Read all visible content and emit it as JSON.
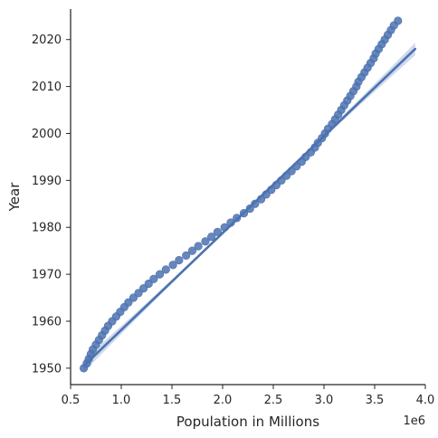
{
  "chart_data": {
    "type": "scatter",
    "xlabel": "Population in Millions",
    "ylabel": "Year",
    "x_offset_label": "1e6",
    "xlim": [
      0.5,
      4.0
    ],
    "ylim": [
      1946.5,
      2026.5
    ],
    "x_ticks": [
      0.5,
      1.0,
      1.5,
      2.0,
      2.5,
      3.0,
      3.5,
      4.0
    ],
    "x_tick_labels": [
      "0.5",
      "1.0",
      "1.5",
      "2.0",
      "2.5",
      "3.0",
      "3.5",
      "4.0"
    ],
    "y_ticks": [
      1950,
      1960,
      1970,
      1980,
      1990,
      2000,
      2010,
      2020
    ],
    "y_tick_labels": [
      "1950",
      "1960",
      "1970",
      "1980",
      "1990",
      "2000",
      "2010",
      "2020"
    ],
    "grid": false,
    "colors": {
      "points": "#4c72b0",
      "line": "#4c72b0",
      "band": "#a8bcdc",
      "axis": "#262626"
    },
    "series": [
      {
        "kind": "scatter",
        "x": [
          0.63,
          0.66,
          0.68,
          0.7,
          0.72,
          0.75,
          0.78,
          0.81,
          0.84,
          0.87,
          0.91,
          0.95,
          0.99,
          1.03,
          1.07,
          1.12,
          1.17,
          1.22,
          1.27,
          1.32,
          1.38,
          1.44,
          1.51,
          1.57,
          1.64,
          1.7,
          1.76,
          1.83,
          1.89,
          1.95,
          2.02,
          2.08,
          2.14,
          2.21,
          2.27,
          2.32,
          2.38,
          2.43,
          2.48,
          2.53,
          2.58,
          2.63,
          2.68,
          2.73,
          2.78,
          2.82,
          2.87,
          2.91,
          2.94,
          2.98,
          3.01,
          3.04,
          3.08,
          3.11,
          3.14,
          3.17,
          3.2,
          3.23,
          3.26,
          3.29,
          3.32,
          3.34,
          3.37,
          3.4,
          3.43,
          3.46,
          3.49,
          3.51,
          3.54,
          3.57,
          3.6,
          3.63,
          3.66,
          3.69,
          3.73
        ],
        "y": [
          1950,
          1951,
          1952,
          1953,
          1954,
          1955,
          1956,
          1957,
          1958,
          1959,
          1960,
          1961,
          1962,
          1963,
          1964,
          1965,
          1966,
          1967,
          1968,
          1969,
          1970,
          1971,
          1972,
          1973,
          1974,
          1975,
          1976,
          1977,
          1978,
          1979,
          1980,
          1981,
          1982,
          1983,
          1984,
          1985,
          1986,
          1987,
          1988,
          1989,
          1990,
          1991,
          1992,
          1993,
          1994,
          1995,
          1996,
          1997,
          1998,
          1999,
          2000,
          2001,
          2002,
          2003,
          2004,
          2005,
          2006,
          2007,
          2008,
          2009,
          2010,
          2011,
          2012,
          2013,
          2014,
          2015,
          2016,
          2017,
          2018,
          2019,
          2020,
          2021,
          2022,
          2023,
          2024
        ]
      },
      {
        "kind": "regression",
        "x": [
          0.63,
          3.9
        ],
        "y": [
          1950.5,
          2018.0
        ],
        "ci_halfwidth_at_end": 1.2
      }
    ]
  }
}
